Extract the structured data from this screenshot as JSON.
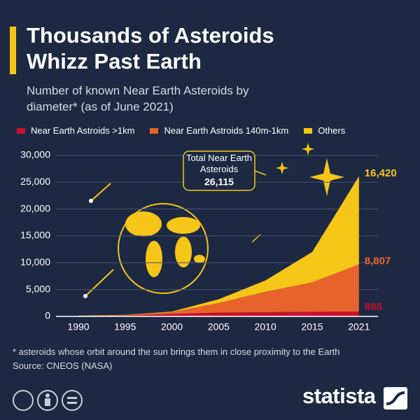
{
  "chart_data": {
    "type": "stacked_area",
    "title": "Thousands of Asteroids Whizz Past Earth",
    "subtitle": "Number of known Near Earth Asteroids by diameter* (as of June 2021)",
    "categories": [
      "1990",
      "1995",
      "2000",
      "2005",
      "2010",
      "2015",
      "2021"
    ],
    "series": [
      {
        "name": "Near Earth Astroids  >1km",
        "color": "#c8102e",
        "values": [
          50,
          150,
          450,
          700,
          800,
          850,
          888
        ],
        "value_labels": [
          null,
          null,
          null,
          null,
          null,
          null,
          "888"
        ]
      },
      {
        "name": "Near Earth Astroids 140m-1km",
        "color": "#e8622c",
        "values": [
          50,
          100,
          350,
          1800,
          3800,
          5500,
          8807
        ],
        "value_labels": [
          null,
          null,
          null,
          null,
          null,
          null,
          "8,807"
        ]
      },
      {
        "name": "Others",
        "color": "#f5c518",
        "values": [
          50,
          50,
          100,
          700,
          2100,
          5650,
          16420
        ],
        "value_labels": [
          null,
          null,
          null,
          null,
          null,
          null,
          "16,420"
        ]
      }
    ],
    "ylim": [
      0,
      30000
    ],
    "yticks": [
      0,
      {
        "value": 5000,
        "label": "5,000"
      },
      {
        "value": 10000,
        "label": "10,000"
      },
      {
        "value": 15000,
        "label": "15,000"
      },
      {
        "value": 20000,
        "label": "20,000"
      },
      {
        "value": 25000,
        "label": "25,000"
      },
      {
        "value": 30000,
        "label": "30,000"
      }
    ],
    "grid": true,
    "annotation": {
      "text": "Total Near Earth Asteroids",
      "total": {
        "value": 26115,
        "label": "26,115"
      }
    },
    "note": "* asteroids whose orbit around the sun brings them in close proximity to the Earth",
    "source": "Source: CNEOS (NASA)",
    "brand": "statista"
  }
}
